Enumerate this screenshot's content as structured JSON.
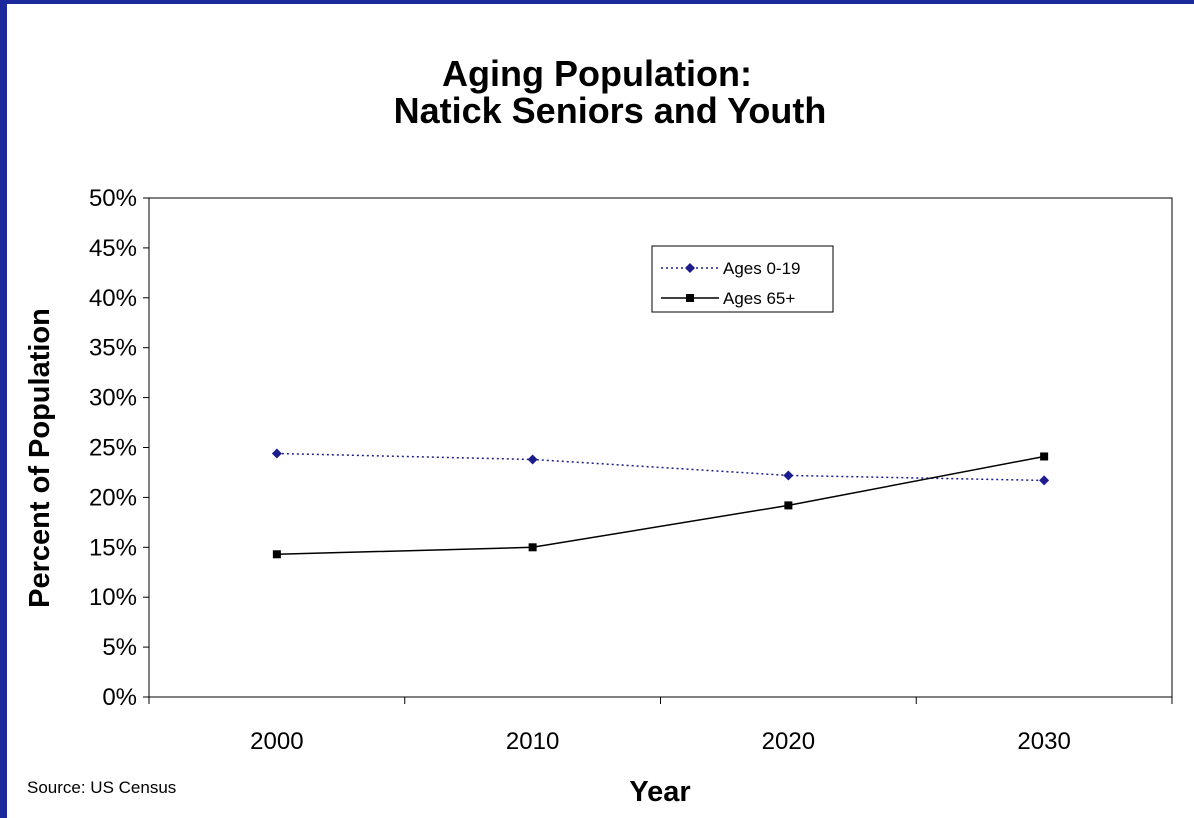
{
  "colors": {
    "border": "#1a2a9c",
    "series_0_19": "#1c1c8c",
    "series_65": "#000000"
  },
  "source": "Source: US Census",
  "chart_data": {
    "type": "line",
    "title": "Aging Population:",
    "subtitle": "Natick Seniors and Youth",
    "xlabel": "Year",
    "ylabel": "Percent of Population",
    "categories": [
      "2000",
      "2010",
      "2020",
      "2030"
    ],
    "ylim": [
      0,
      50
    ],
    "yticks": [
      "0%",
      "5%",
      "10%",
      "15%",
      "20%",
      "25%",
      "30%",
      "35%",
      "40%",
      "45%",
      "50%"
    ],
    "grid": false,
    "legend_position": "top-center",
    "series": [
      {
        "name": "Ages 0-19",
        "values": [
          24.4,
          23.8,
          22.2,
          21.7
        ],
        "marker": "diamond",
        "line": "dotted"
      },
      {
        "name": "Ages 65+",
        "values": [
          14.3,
          15.0,
          19.2,
          24.1
        ],
        "marker": "square",
        "line": "solid"
      }
    ]
  }
}
